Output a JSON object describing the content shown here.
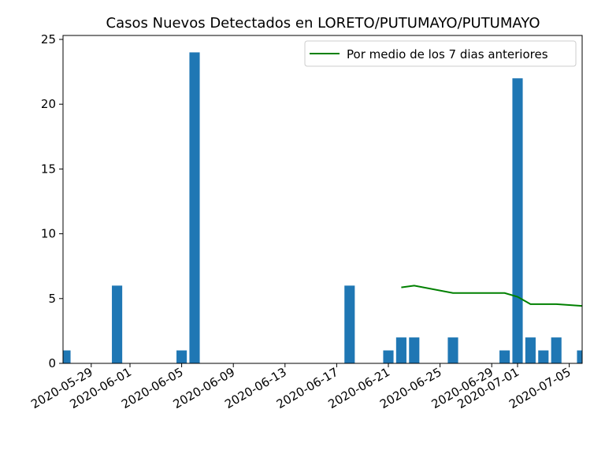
{
  "chart_data": {
    "type": "bar",
    "title": "Casos Nuevos Detectados en LORETO/PUTUMAYO/PUTUMAYO",
    "xlabel": "",
    "ylabel": "",
    "ylim": [
      0,
      25
    ],
    "yticks": [
      0,
      5,
      10,
      15,
      20,
      25
    ],
    "xlim": [
      "2020-05-27",
      "2020-07-06"
    ],
    "xticks": [
      "2020-05-29",
      "2020-06-01",
      "2020-06-05",
      "2020-06-09",
      "2020-06-13",
      "2020-06-17",
      "2020-06-21",
      "2020-06-25",
      "2020-06-29",
      "2020-07-01",
      "2020-07-05"
    ],
    "grid": false,
    "legend_position": "top-right",
    "bar_color": "#1f77b4",
    "bars": [
      {
        "date": "2020-05-27",
        "value": 1
      },
      {
        "date": "2020-05-31",
        "value": 6
      },
      {
        "date": "2020-06-05",
        "value": 1
      },
      {
        "date": "2020-06-06",
        "value": 24
      },
      {
        "date": "2020-06-18",
        "value": 6
      },
      {
        "date": "2020-06-21",
        "value": 1
      },
      {
        "date": "2020-06-22",
        "value": 2
      },
      {
        "date": "2020-06-23",
        "value": 2
      },
      {
        "date": "2020-06-26",
        "value": 2
      },
      {
        "date": "2020-06-30",
        "value": 1
      },
      {
        "date": "2020-07-01",
        "value": 22
      },
      {
        "date": "2020-07-02",
        "value": 2
      },
      {
        "date": "2020-07-03",
        "value": 1
      },
      {
        "date": "2020-07-04",
        "value": 2
      },
      {
        "date": "2020-07-06",
        "value": 1
      }
    ],
    "series": [
      {
        "name": "Por medio de los 7 dias anteriores",
        "color": "#008000",
        "points": [
          {
            "date": "2020-06-22",
            "value": 5.86
          },
          {
            "date": "2020-06-23",
            "value": 6.0
          },
          {
            "date": "2020-06-26",
            "value": 5.43
          },
          {
            "date": "2020-06-30",
            "value": 5.43
          },
          {
            "date": "2020-07-01",
            "value": 5.14
          },
          {
            "date": "2020-07-02",
            "value": 4.57
          },
          {
            "date": "2020-07-04",
            "value": 4.57
          },
          {
            "date": "2020-07-06",
            "value": 4.43
          }
        ]
      }
    ]
  }
}
